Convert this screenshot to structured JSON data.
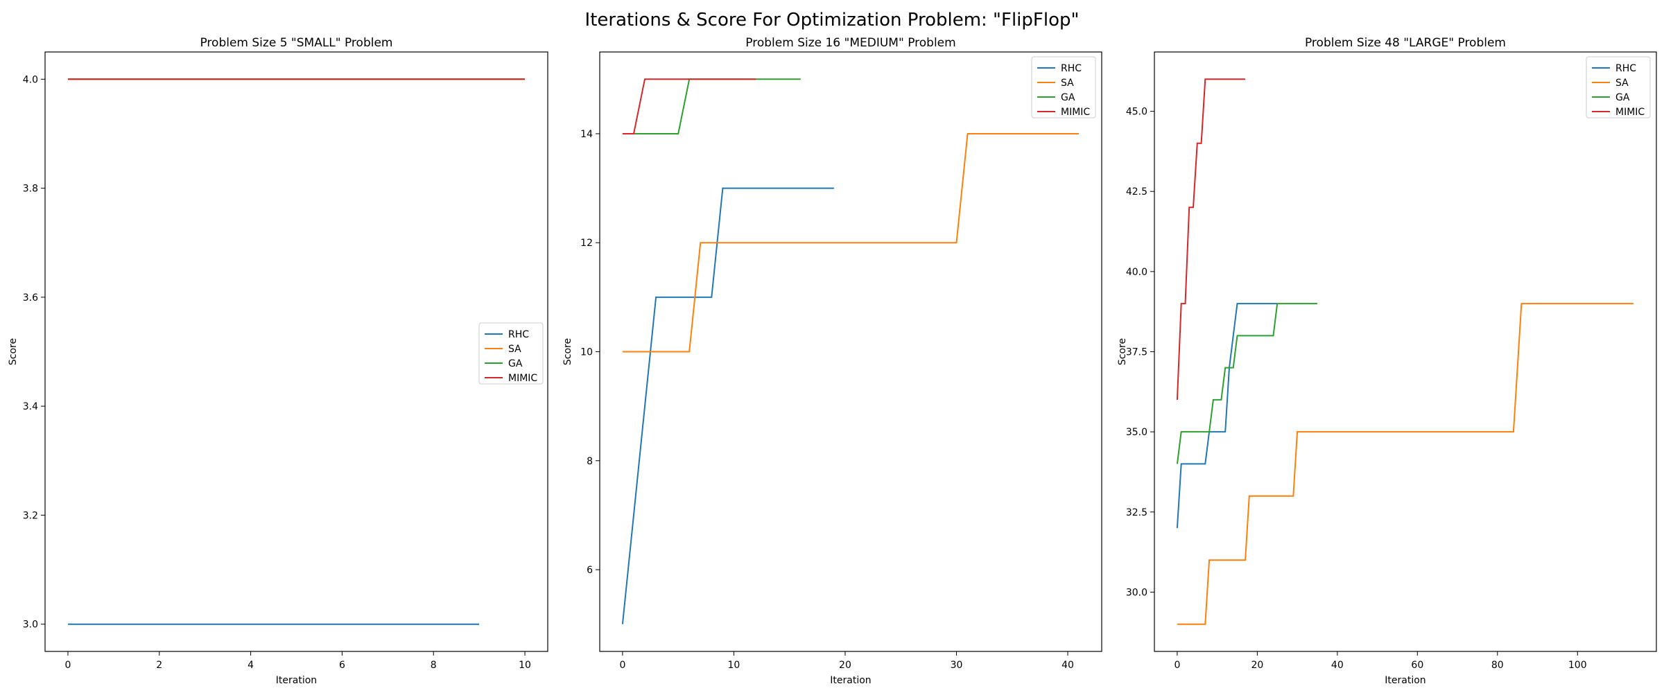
{
  "figure": {
    "title": "Iterations & Score For Optimization Problem: \"FlipFlop\""
  },
  "colors": {
    "RHC": "#1f77b4",
    "SA": "#ff7f0e",
    "GA": "#2ca02c",
    "MIMIC": "#d62728"
  },
  "chart_data": [
    {
      "type": "line",
      "title": "Problem Size 5 \"SMALL\" Problem",
      "xlabel": "Iteration",
      "ylabel": "Score",
      "xlim": [
        -0.5,
        10.5
      ],
      "ylim": [
        2.95,
        4.05
      ],
      "xticks": [
        0,
        2,
        4,
        6,
        8,
        10
      ],
      "xtick_labels": [
        "0",
        "2",
        "4",
        "6",
        "8",
        "10"
      ],
      "yticks": [
        3.0,
        3.2,
        3.4,
        3.6,
        3.8,
        4.0
      ],
      "ytick_labels": [
        "3.0",
        "3.2",
        "3.4",
        "3.6",
        "3.8",
        "4.0"
      ],
      "legend": "center-right",
      "grid": false,
      "series": [
        {
          "name": "RHC",
          "x": [
            0,
            9
          ],
          "y": [
            3,
            3
          ]
        },
        {
          "name": "SA",
          "x": [
            0,
            10
          ],
          "y": [
            4,
            4
          ]
        },
        {
          "name": "GA",
          "x": [
            0,
            10
          ],
          "y": [
            4,
            4
          ]
        },
        {
          "name": "MIMIC",
          "x": [
            0,
            10
          ],
          "y": [
            4,
            4
          ]
        }
      ]
    },
    {
      "type": "line",
      "title": "Problem Size 16 \"MEDIUM\" Problem",
      "xlabel": "Iteration",
      "ylabel": "Score",
      "xlim": [
        -2.05,
        43.05
      ],
      "ylim": [
        4.5,
        15.5
      ],
      "xticks": [
        0,
        10,
        20,
        30,
        40
      ],
      "xtick_labels": [
        "0",
        "10",
        "20",
        "30",
        "40"
      ],
      "yticks": [
        6,
        8,
        10,
        12,
        14
      ],
      "ytick_labels": [
        "6",
        "8",
        "10",
        "12",
        "14"
      ],
      "legend": "top-right",
      "grid": false,
      "series": [
        {
          "name": "RHC",
          "x": [
            0,
            3,
            8,
            9,
            19
          ],
          "y": [
            5,
            11,
            11,
            13,
            13
          ]
        },
        {
          "name": "SA",
          "x": [
            0,
            6,
            7,
            30,
            31,
            41
          ],
          "y": [
            10,
            10,
            12,
            12,
            14,
            14
          ]
        },
        {
          "name": "GA",
          "x": [
            0,
            5,
            6,
            16
          ],
          "y": [
            14,
            14,
            15,
            15
          ]
        },
        {
          "name": "MIMIC",
          "x": [
            0,
            1,
            2,
            12
          ],
          "y": [
            14,
            14,
            15,
            15
          ]
        }
      ]
    },
    {
      "type": "line",
      "title": "Problem Size 48 \"LARGE\" Problem",
      "xlabel": "Iteration",
      "ylabel": "Score",
      "xlim": [
        -5.7,
        119.7
      ],
      "ylim": [
        28.15,
        46.85
      ],
      "xticks": [
        0,
        20,
        40,
        60,
        80,
        100
      ],
      "xtick_labels": [
        "0",
        "20",
        "40",
        "60",
        "80",
        "100"
      ],
      "yticks": [
        30.0,
        32.5,
        35.0,
        37.5,
        40.0,
        42.5,
        45.0
      ],
      "ytick_labels": [
        "30.0",
        "32.5",
        "35.0",
        "37.5",
        "40.0",
        "42.5",
        "45.0"
      ],
      "legend": "top-right",
      "grid": false,
      "series": [
        {
          "name": "RHC",
          "x": [
            0,
            1,
            7,
            8,
            12,
            13,
            15,
            25
          ],
          "y": [
            32,
            34,
            34,
            35,
            35,
            37,
            39,
            39
          ]
        },
        {
          "name": "SA",
          "x": [
            0,
            7,
            8,
            17,
            18,
            29,
            30,
            84,
            86,
            114
          ],
          "y": [
            29,
            29,
            31,
            31,
            33,
            33,
            35,
            35,
            39,
            39
          ]
        },
        {
          "name": "GA",
          "x": [
            0,
            1,
            8,
            9,
            11,
            12,
            14,
            15,
            24,
            25,
            35
          ],
          "y": [
            34,
            35,
            35,
            36,
            36,
            37,
            37,
            38,
            38,
            39,
            39
          ]
        },
        {
          "name": "MIMIC",
          "x": [
            0,
            1,
            2,
            3,
            4,
            5,
            6,
            7,
            17
          ],
          "y": [
            36,
            39,
            39,
            42,
            42,
            44,
            44,
            46,
            46
          ]
        }
      ]
    }
  ]
}
